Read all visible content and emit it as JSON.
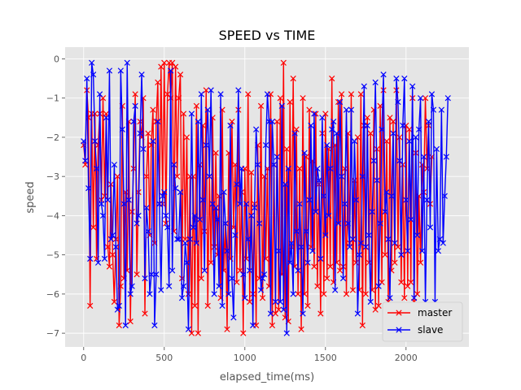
{
  "chart_data": {
    "type": "line",
    "title": "SPEED vs TIME",
    "xlabel": "elapsed_time(ms)",
    "ylabel": "speed",
    "xlim": [
      -115,
      2390
    ],
    "ylim": [
      -7.35,
      0.3
    ],
    "xticks": [
      0,
      500,
      1000,
      1500,
      2000
    ],
    "xtick_labels": [
      "0",
      "500",
      "1000",
      "1500",
      "2000"
    ],
    "yticks": [
      0,
      -1,
      -2,
      -3,
      -4,
      -5,
      -6,
      -7
    ],
    "ytick_labels": [
      "0",
      "−1",
      "−2",
      "−3",
      "−4",
      "−5",
      "−6",
      "−7"
    ],
    "grid": true,
    "legend_position": "lower-right",
    "x_step": 10,
    "series": [
      {
        "name": "master",
        "color": "#ff0000",
        "marker": "x",
        "values": [
          -2.2,
          -2.7,
          -0.8,
          -1.5,
          -6.3,
          -1.4,
          -4.3,
          -1.4,
          -5.1,
          -2.2,
          -1.4,
          -3.6,
          -1.0,
          -3.5,
          -1.4,
          -4.8,
          -5.3,
          -3.2,
          -5.0,
          -6.2,
          -4.6,
          -3.0,
          -6.8,
          -5.8,
          -1.2,
          -5.6,
          -3.4,
          -5.4,
          -1.6,
          -6.7,
          -3.9,
          -2.8,
          -0.9,
          -5.5,
          -3.4,
          -1.6,
          -2.0,
          -1.0,
          -6.5,
          -3.0,
          -1.9,
          -4.5,
          -2.2,
          -1.3,
          -4.7,
          -1.6,
          -0.6,
          -3.7,
          -0.2,
          -3.7,
          -0.1,
          -4.2,
          -0.9,
          -0.1,
          -1.0,
          -0.1,
          -4.4,
          -0.2,
          -3.0,
          -1.0,
          -0.4,
          -5.6,
          -1.4,
          -4.6,
          -2.0,
          -6.0,
          -3.0,
          -7.0,
          -3.0,
          -6.3,
          -1.2,
          -7.0,
          -2.7,
          -5.6,
          -1.7,
          -4.4,
          -0.8,
          -6.3,
          -3.0,
          -5.2,
          -1.5,
          -4.8,
          -2.4,
          -5.0,
          -3.5,
          -6.1,
          -1.3,
          -5.4,
          -4.2,
          -6.9,
          -2.4,
          -5.1,
          -1.6,
          -4.3,
          -2.7,
          -5.7,
          -1.3,
          -5.4,
          -3.4,
          -7.0,
          -2.8,
          -5.1,
          -0.9,
          -6.2,
          -2.9,
          -6.0,
          -3.7,
          -6.8,
          -2.2,
          -5.6,
          -1.2,
          -6.1,
          -3.0,
          -5.1,
          -2.8,
          -5.8,
          -0.9,
          -6.8,
          -2.7,
          -6.5,
          -1.6,
          -6.4,
          -1.0,
          -5.5,
          -0.1,
          -6.6,
          -2.3,
          -6.7,
          -1.1,
          -4.8,
          -0.5,
          -5.3,
          -1.8,
          -6.0,
          -2.8,
          -6.9,
          -1.0,
          -6.0,
          -2.5,
          -6.3,
          -1.3,
          -4.8,
          -2.6,
          -5.3,
          -1.4,
          -5.8,
          -3.2,
          -6.5,
          -1.9,
          -6.0,
          -1.4,
          -5.6,
          -2.3,
          -5.3,
          -0.5,
          -5.7,
          -2.2,
          -5.2,
          -1.1,
          -5.4,
          -0.9,
          -5.3,
          -2.8,
          -6.0,
          -1.9,
          -4.7,
          -0.9,
          -5.9,
          -3.1,
          -5.2,
          -2.0,
          -5.9,
          -0.9,
          -6.8,
          -1.7,
          -6.0,
          -1.5,
          -5.2,
          -1.9,
          -5.9,
          -1.3,
          -6.4,
          -2.3,
          -6.3,
          -1.2,
          -5.7,
          -0.8,
          -5.0,
          -2.1,
          -6.2,
          -1.5,
          -5.4,
          -1.6,
          -5.2,
          -0.8,
          -4.8,
          -2.0,
          -5.7,
          -2.7,
          -6.1,
          -1.7,
          -5.8,
          -1.8,
          -5.7,
          -1.0,
          -6.2,
          -2.4,
          -6.0,
          -3.5,
          -5.2,
          -2.7,
          -3.4,
          -1.0,
          -2.8,
          -1.7,
          -3.7,
          -2.5
        ]
      },
      {
        "name": "slave",
        "color": "#0000ff",
        "marker": "x",
        "values": [
          -2.1,
          -2.6,
          -0.5,
          -3.3,
          -5.1,
          -0.1,
          -0.4,
          -2.1,
          -2.8,
          -5.2,
          -0.9,
          -3.7,
          -4.0,
          -5.1,
          -1.5,
          -3.6,
          -0.3,
          -4.6,
          -4.5,
          -2.7,
          -4.8,
          -6.4,
          -6.3,
          -0.3,
          -1.8,
          -3.7,
          -6.8,
          -0.1,
          -3.6,
          -6.0,
          -5.8,
          -1.6,
          -1.2,
          -4.2,
          -4.0,
          -1.9,
          -0.4,
          -2.3,
          -5.6,
          -3.8,
          -4.4,
          -6.0,
          -5.5,
          -2.1,
          -6.8,
          -5.5,
          -1.6,
          -3.7,
          -5.9,
          -3.5,
          -3.4,
          -4.0,
          -4.3,
          -5.8,
          -0.3,
          -5.4,
          -2.7,
          -3.3,
          -4.6,
          -4.6,
          -3.4,
          -6.1,
          -5.8,
          -4.7,
          -5.2,
          -6.9,
          -4.6,
          -1.4,
          -4.3,
          -4.0,
          -4.7,
          -1.6,
          -4.1,
          -0.9,
          -3.6,
          -5.4,
          -2.2,
          -1.3,
          -3.0,
          -0.8,
          -3.7,
          -6.0,
          -3.8,
          -4.1,
          -5.8,
          -0.9,
          -6.3,
          -3.4,
          -4.2,
          -4.9,
          -6.0,
          -1.7,
          -5.6,
          -6.6,
          -4.5,
          -3.2,
          -0.8,
          -3.7,
          -2.8,
          -5.5,
          -6.1,
          -3.7,
          -4.6,
          -5.4,
          -4.0,
          -6.8,
          -3.8,
          -1.8,
          -2.7,
          -4.2,
          -5.9,
          -5.6,
          -5.5,
          -2.2,
          -0.9,
          -1.6,
          -6.5,
          -1.6,
          -2.7,
          -6.2,
          -2.5,
          -4.9,
          -6.2,
          -1.2,
          -6.4,
          -3.2,
          -7.0,
          -2.8,
          -5.2,
          -4.7,
          -6.0,
          -1.9,
          -4.4,
          -5.4,
          -3.7,
          -4.8,
          -6.5,
          -2.4,
          -4.4,
          -5.2,
          -3.6,
          -1.7,
          -4.9,
          -1.4,
          -3.9,
          -2.8,
          -3.1,
          -5.1,
          -1.5,
          -3.5,
          -4.5,
          -2.2,
          -4.0,
          -2.8,
          -1.8,
          -1.6,
          -5.9,
          -1.9,
          -4.2,
          -1.1,
          -3.0,
          -5.6,
          -3.7,
          -1.3,
          -4.2,
          -4.8,
          -1.3,
          -4.6,
          -2.1,
          -3.6,
          -6.5,
          -5.0,
          -4.7,
          -3.0,
          -0.7,
          -4.8,
          -1.7,
          -4.5,
          -6.2,
          -3.9,
          -2.6,
          -0.6,
          -3.1,
          -5.8,
          -4.2,
          -1.8,
          -0.4,
          -3.9,
          -3.4,
          -4.6,
          -6.1,
          -3.5,
          -1.9,
          -4.7,
          -0.5,
          -1.1,
          -2.6,
          -5.0,
          -1.7,
          -0.5,
          -3.6,
          -4.9,
          -2.1,
          -4.1,
          -0.7,
          -6.1,
          -2.0,
          -4.5,
          -1.8,
          -1.0,
          -4.9,
          -2.5,
          -6.2,
          -3.6,
          -1.6,
          -4.3,
          -0.9,
          -1.3,
          -6.2,
          -2.3,
          -4.9,
          -4.6,
          -1.3,
          -4.7,
          -3.5,
          -2.5,
          -1.0
        ]
      }
    ]
  }
}
